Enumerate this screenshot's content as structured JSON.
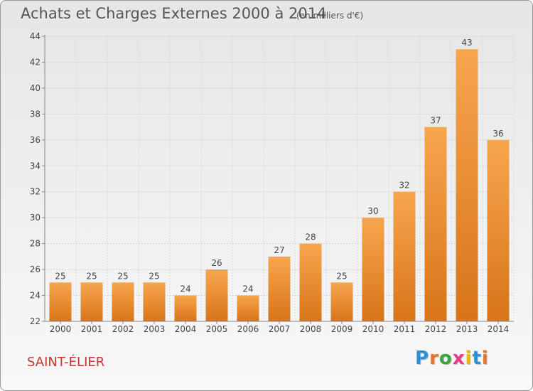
{
  "title": "Achats et Charges Externes 2000 à 2014",
  "subtitle": "(en milliers d'€)",
  "commune": "SAINT-ÉLIER",
  "logo": {
    "letters": [
      "P",
      "r",
      "o",
      "x",
      "i",
      "t",
      "i"
    ],
    "colors": [
      "#2f8ed8",
      "#e8742c",
      "#3aa63a",
      "#e63c8e",
      "#f0b400",
      "#2f8ed8",
      "#e8742c"
    ]
  },
  "chart_data": {
    "type": "bar",
    "categories": [
      "2000",
      "2001",
      "2002",
      "2003",
      "2004",
      "2005",
      "2006",
      "2007",
      "2008",
      "2009",
      "2010",
      "2011",
      "2012",
      "2013",
      "2014"
    ],
    "values": [
      25,
      25,
      25,
      25,
      24,
      26,
      24,
      27,
      28,
      25,
      30,
      32,
      37,
      43,
      36
    ],
    "title": "Achats et Charges Externes 2000 à 2014",
    "subtitle": "(en milliers d'€)",
    "xlabel": "",
    "ylabel": "",
    "ylim": [
      22,
      44
    ],
    "yticks": [
      22,
      24,
      26,
      28,
      30,
      32,
      34,
      36,
      38,
      40,
      42,
      44
    ],
    "grid": true,
    "bar_color": "#f08c2a",
    "data_labels": true
  }
}
